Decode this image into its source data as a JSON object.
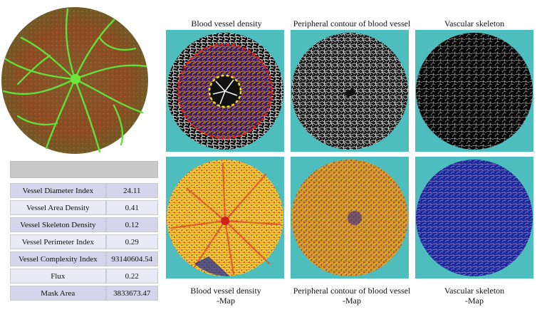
{
  "fundus": {
    "icon": "retina-fundus-image"
  },
  "metrics": {
    "header": "",
    "rows": [
      {
        "label": "Vessel Diameter Index",
        "value": "24.11"
      },
      {
        "label": "Vessel Area Density",
        "value": "0.41"
      },
      {
        "label": "Vessel Skeleton Density",
        "value": "0.12"
      },
      {
        "label": "Vessel Perimeter Index",
        "value": "0.29"
      },
      {
        "label": "Vessel Complexity Index",
        "value": "93140604.54"
      },
      {
        "label": "Flux",
        "value": "0.22"
      },
      {
        "label": "Mask Area",
        "value": "3833673.47"
      }
    ]
  },
  "captions": {
    "top": [
      "Blood vessel density",
      "Peripheral contour of blood vessel",
      "Vascular skeleton"
    ],
    "bottom": [
      {
        "line1": "Blood vessel density",
        "line2": "-Map"
      },
      {
        "line1": "Peripheral contour of blood vessel",
        "line2": "-Map"
      },
      {
        "line1": "Vascular skeleton",
        "line2": "-Map"
      }
    ]
  },
  "colors": {
    "panel_bg": "#4dbdbd",
    "vessel_green": "#5fe03a",
    "fundus_red": "#a8452a",
    "ring_red": "#e02020",
    "ring_yellow": "#f0e020",
    "map_blue": "#1a2a9a"
  }
}
